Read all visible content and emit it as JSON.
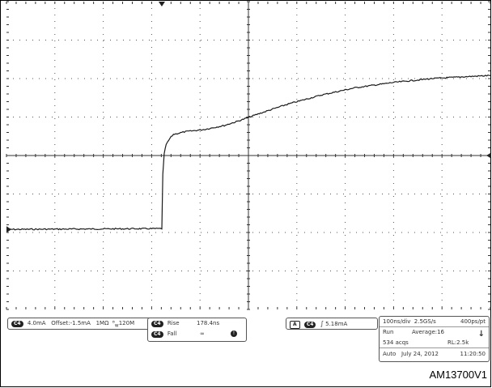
{
  "figure_id": "AM13700V1",
  "channel_readout": {
    "channel_tag": "C4",
    "scale": "4.0mA",
    "offset": "Offset:-1.5mA",
    "impedance": "1MΩ",
    "bandwidth": "120M"
  },
  "measurements": {
    "rise": {
      "tag": "C4",
      "label": "Rise",
      "value": "178.4ns"
    },
    "fall": {
      "tag": "C4",
      "label": "Fall",
      "value": "∞"
    },
    "warning_icon": "warning-icon"
  },
  "trigger": {
    "mode_tag": "A",
    "channel_tag": "C4",
    "slope_icon": "rising-edge-icon",
    "level": "5.18mA"
  },
  "acquisition": {
    "timebase": "100ns/div",
    "sample_rate": "2.5GS/s",
    "resolution": "400ps/pt",
    "state": "Run",
    "mode": "Average:16",
    "acqs": "534 acqs",
    "record_length": "RL:2.5k",
    "trigger_type": "Auto",
    "date": "July 24, 2012",
    "time": "11:20:50"
  },
  "colors": {
    "grid": "#555555",
    "trace": "#1a1a1a",
    "frame": "#000000"
  },
  "chart_data": {
    "type": "line",
    "title": "",
    "xlabel": "",
    "ylabel": "",
    "x_unit": "div",
    "y_unit": "div",
    "xlim": [
      -5,
      5
    ],
    "ylim": [
      -4,
      4
    ],
    "grid": true,
    "series": [
      {
        "x": [
          -5,
          -1.9,
          -1.79,
          -1.77,
          -1.74,
          -1.7,
          -1.62,
          -1.55,
          -1.3,
          -0.9,
          -0.5,
          -0.2,
          0.2,
          0.8,
          1.5,
          2.2,
          3.0,
          3.8,
          4.5,
          5.0
        ],
        "y": [
          -1.92,
          -1.9,
          -1.9,
          -0.5,
          0.05,
          0.28,
          0.45,
          0.55,
          0.62,
          0.68,
          0.78,
          0.9,
          1.08,
          1.33,
          1.57,
          1.76,
          1.9,
          2.0,
          2.05,
          2.08
        ]
      }
    ]
  }
}
